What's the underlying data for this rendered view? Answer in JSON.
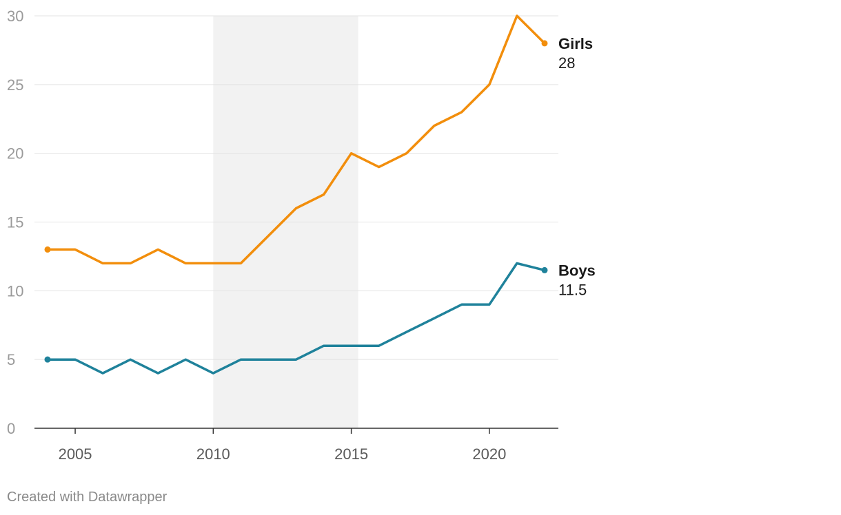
{
  "chart_data": {
    "type": "line",
    "title": "",
    "xlabel": "",
    "ylabel": "",
    "x": [
      2004,
      2005,
      2006,
      2007,
      2008,
      2009,
      2010,
      2011,
      2012,
      2013,
      2014,
      2015,
      2016,
      2017,
      2018,
      2019,
      2020,
      2021,
      2022
    ],
    "xlim": [
      2004,
      2022
    ],
    "ylim": [
      0,
      30
    ],
    "y_ticks": [
      0,
      5,
      10,
      15,
      20,
      25,
      30
    ],
    "x_ticks": [
      2005,
      2010,
      2015,
      2020
    ],
    "grid": true,
    "shaded_range": [
      2010,
      2015.25
    ],
    "series": [
      {
        "name": "Girls",
        "color": "#f28e0c",
        "end_label": "28",
        "values": [
          13,
          13,
          12,
          12,
          13,
          12,
          12,
          12,
          14,
          16,
          17,
          20,
          19,
          20,
          22,
          23,
          25,
          30,
          28
        ]
      },
      {
        "name": "Boys",
        "color": "#1f829b",
        "end_label": "11.5",
        "values": [
          5,
          5,
          4,
          5,
          4,
          5,
          4,
          5,
          5,
          5,
          6,
          6,
          6,
          7,
          8,
          9,
          9,
          12,
          11.5
        ]
      }
    ]
  },
  "footer": {
    "credit": "Created with Datawrapper"
  }
}
